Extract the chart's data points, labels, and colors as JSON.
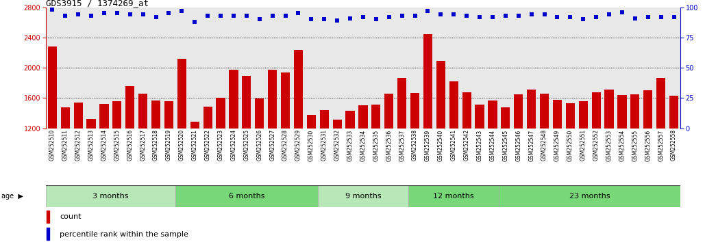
{
  "title": "GDS3915 / 1374269_at",
  "samples": [
    "GSM252510",
    "GSM252511",
    "GSM252512",
    "GSM252513",
    "GSM252514",
    "GSM252515",
    "GSM252516",
    "GSM252517",
    "GSM252518",
    "GSM252519",
    "GSM252520",
    "GSM252521",
    "GSM252522",
    "GSM252523",
    "GSM252524",
    "GSM252525",
    "GSM252526",
    "GSM252527",
    "GSM252528",
    "GSM252529",
    "GSM252530",
    "GSM252531",
    "GSM252532",
    "GSM252533",
    "GSM252534",
    "GSM252535",
    "GSM252536",
    "GSM252537",
    "GSM252538",
    "GSM252539",
    "GSM252540",
    "GSM252541",
    "GSM252542",
    "GSM252543",
    "GSM252544",
    "GSM252545",
    "GSM252546",
    "GSM252547",
    "GSM252548",
    "GSM252549",
    "GSM252550",
    "GSM252551",
    "GSM252552",
    "GSM252553",
    "GSM252554",
    "GSM252555",
    "GSM252556",
    "GSM252557",
    "GSM252558"
  ],
  "counts": [
    2280,
    1480,
    1540,
    1320,
    1520,
    1560,
    1760,
    1660,
    1570,
    1560,
    2120,
    1290,
    1490,
    1600,
    1970,
    1890,
    1590,
    1970,
    1940,
    2240,
    1380,
    1440,
    1310,
    1430,
    1500,
    1510,
    1660,
    1870,
    1670,
    2440,
    2090,
    1820,
    1680,
    1510,
    1570,
    1480,
    1650,
    1710,
    1660,
    1580,
    1530,
    1560,
    1680,
    1710,
    1640,
    1650,
    1700,
    1870,
    1630
  ],
  "percentiles": [
    98,
    93,
    94,
    93,
    95,
    95,
    94,
    94,
    92,
    95,
    97,
    88,
    93,
    93,
    93,
    93,
    90,
    93,
    93,
    95,
    90,
    90,
    89,
    91,
    92,
    90,
    92,
    93,
    93,
    97,
    94,
    94,
    93,
    92,
    92,
    93,
    93,
    94,
    94,
    92,
    92,
    90,
    92,
    94,
    96,
    91,
    92,
    92,
    92
  ],
  "groups": [
    {
      "label": "3 months",
      "start": 0,
      "end": 10,
      "color": "#b8e8b8"
    },
    {
      "label": "6 months",
      "start": 10,
      "end": 21,
      "color": "#78d878"
    },
    {
      "label": "9 months",
      "start": 21,
      "end": 28,
      "color": "#b8e8b8"
    },
    {
      "label": "12 months",
      "start": 28,
      "end": 35,
      "color": "#78d878"
    },
    {
      "label": "23 months",
      "start": 35,
      "end": 49,
      "color": "#78d878"
    }
  ],
  "bar_color": "#cc0000",
  "dot_color": "#0000cc",
  "ylim_left": [
    1200,
    2800
  ],
  "ylim_right": [
    0,
    100
  ],
  "yticks_left": [
    1200,
    1600,
    2000,
    2400,
    2800
  ],
  "yticks_right": [
    0,
    25,
    50,
    75,
    100
  ],
  "grid_values": [
    1600,
    2000,
    2400
  ],
  "bg_color": "#ffffff",
  "plot_bg": "#e8e8e8",
  "tick_bg": "#d8d8d8",
  "age_label": "age",
  "legend_count_label": "count",
  "legend_pct_label": "percentile rank within the sample"
}
